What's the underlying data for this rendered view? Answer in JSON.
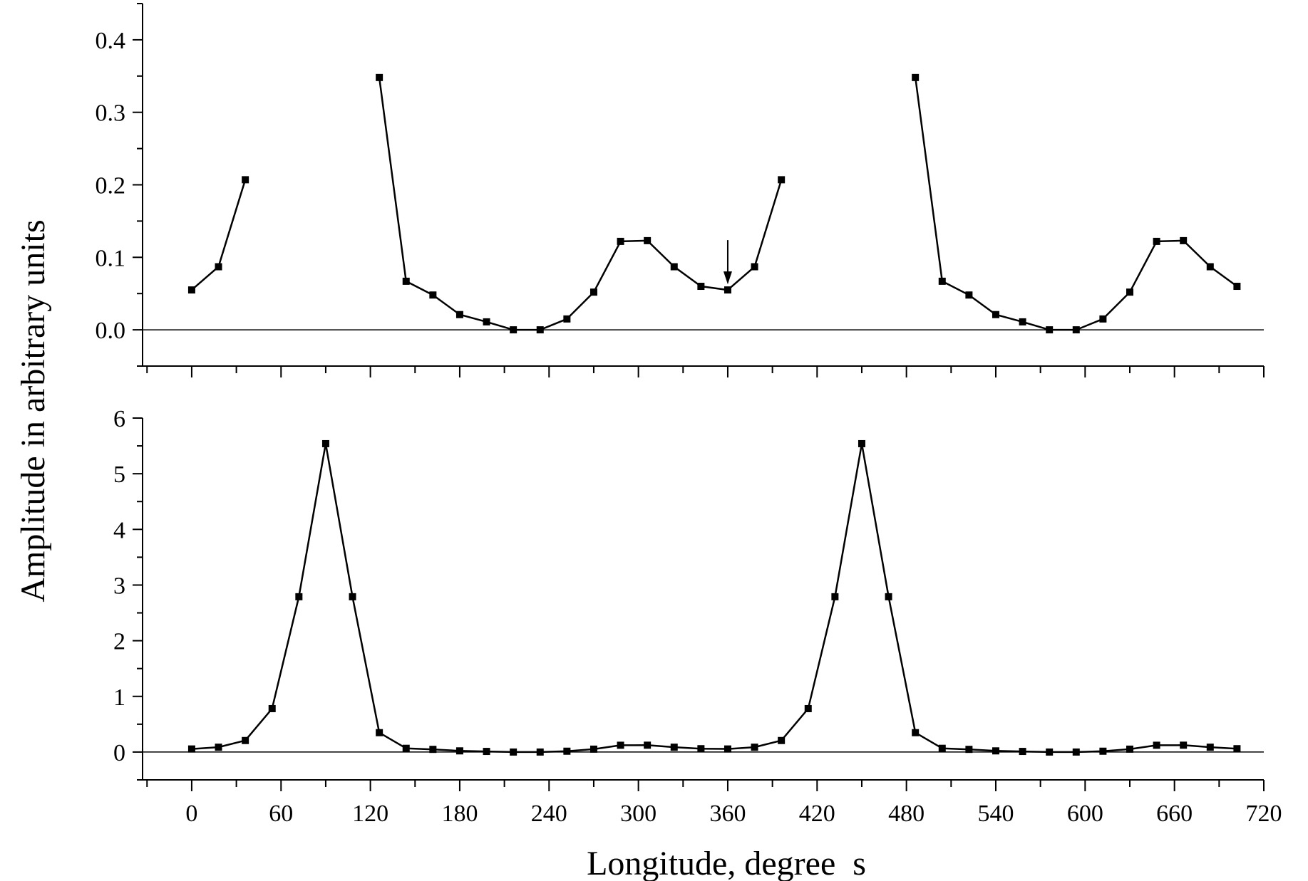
{
  "ylabel": "Amplitude in arbitrary units",
  "xlabel": "Longitude, degree  s",
  "x_ticks": [
    "0",
    "60",
    "120",
    "180",
    "240",
    "300",
    "360",
    "420",
    "480",
    "540",
    "600",
    "660",
    "720"
  ],
  "colors": {
    "line": "#000000",
    "marker": "#000000",
    "background": "#ffffff"
  },
  "chart_data": [
    {
      "type": "line",
      "panel": "top",
      "xlim": [
        -33,
        720
      ],
      "ylim": [
        -0.05,
        0.45
      ],
      "y_ticks": [
        "0.0",
        "0.1",
        "0.2",
        "0.3",
        "0.4"
      ],
      "annotation": {
        "type": "arrow",
        "x": 360,
        "y": 0.055
      },
      "zero_line": true,
      "segments": [
        {
          "x": [
            0,
            18,
            36
          ],
          "y": [
            0.055,
            0.087,
            0.207
          ]
        },
        {
          "x": [
            126,
            144,
            162,
            180,
            198,
            216,
            234,
            252,
            270,
            288,
            306,
            324,
            342,
            360,
            378,
            396
          ],
          "y": [
            0.348,
            0.067,
            0.048,
            0.021,
            0.011,
            0.0,
            0.0,
            0.015,
            0.052,
            0.122,
            0.123,
            0.087,
            0.06,
            0.055,
            0.087,
            0.207
          ]
        },
        {
          "x": [
            486,
            504,
            522,
            540,
            558,
            576,
            594,
            612,
            630,
            648,
            666,
            684,
            702
          ],
          "y": [
            0.348,
            0.067,
            0.048,
            0.021,
            0.011,
            0.0,
            0.0,
            0.015,
            0.052,
            0.122,
            0.123,
            0.087,
            0.06
          ]
        }
      ]
    },
    {
      "type": "line",
      "panel": "bottom",
      "xlim": [
        -33,
        720
      ],
      "ylim": [
        -0.5,
        6
      ],
      "y_ticks": [
        "0",
        "1",
        "2",
        "3",
        "4",
        "5",
        "6"
      ],
      "zero_line": true,
      "segments": [
        {
          "x": [
            0,
            18,
            36,
            54,
            72,
            90,
            108,
            126,
            144,
            162,
            180,
            198,
            216,
            234,
            252,
            270,
            288,
            306,
            324,
            342,
            360,
            378,
            396,
            414,
            432,
            450,
            468,
            486,
            504,
            522,
            540,
            558,
            576,
            594,
            612,
            630,
            648,
            666,
            684,
            702
          ],
          "y": [
            0.055,
            0.087,
            0.207,
            0.78,
            2.79,
            5.54,
            2.79,
            0.348,
            0.067,
            0.048,
            0.021,
            0.011,
            0.0,
            0.0,
            0.015,
            0.052,
            0.122,
            0.123,
            0.087,
            0.06,
            0.055,
            0.087,
            0.207,
            0.78,
            2.79,
            5.54,
            2.79,
            0.348,
            0.067,
            0.048,
            0.021,
            0.011,
            0.0,
            0.0,
            0.015,
            0.052,
            0.122,
            0.123,
            0.087,
            0.06
          ]
        }
      ]
    }
  ]
}
